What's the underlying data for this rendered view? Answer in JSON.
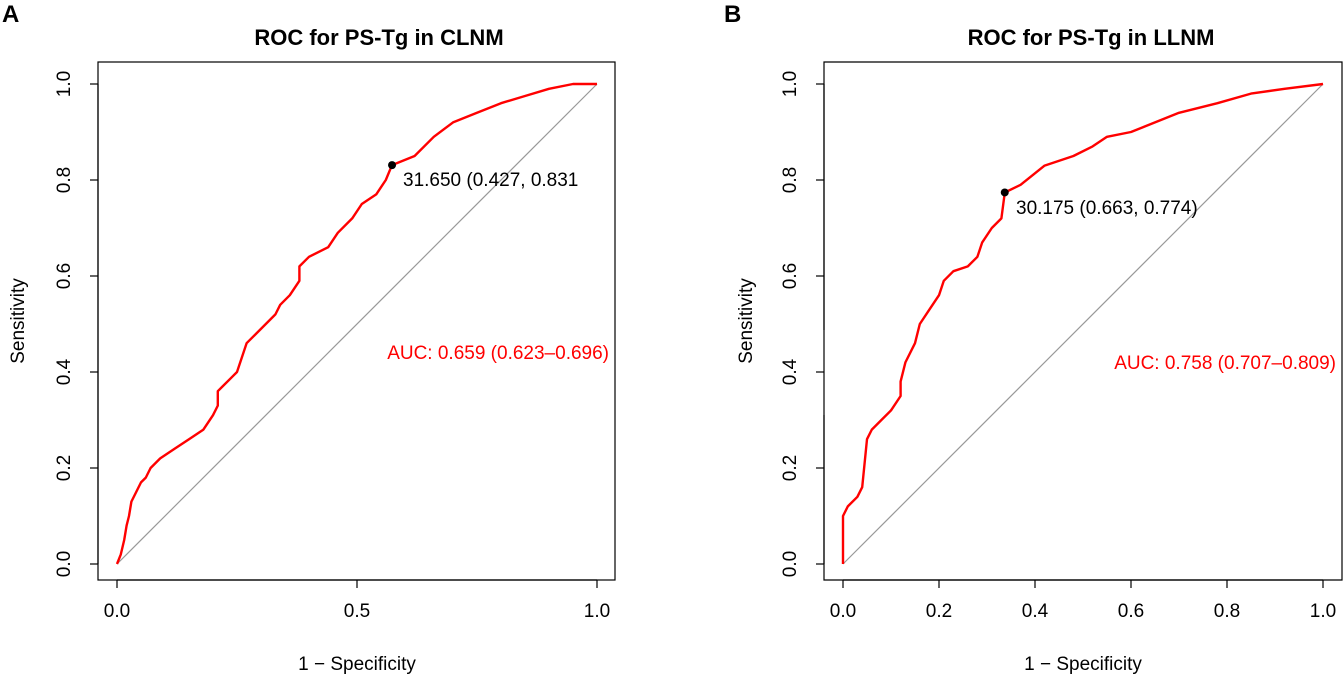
{
  "chart_data": [
    {
      "type": "line",
      "panel": "A",
      "title": "ROC for PS-Tg in CLNM",
      "xlabel": "1 − Specificity",
      "ylabel": "Sensitivity",
      "xlim": [
        0,
        1
      ],
      "ylim": [
        0,
        1
      ],
      "xticks": [
        0.0,
        0.5,
        1.0
      ],
      "xtick_labels": [
        "0.0",
        "0.5",
        "1.0"
      ],
      "yticks": [
        0.0,
        0.2,
        0.4,
        0.6,
        0.8,
        1.0
      ],
      "ytick_labels": [
        "0.0",
        "0.2",
        "0.4",
        "0.6",
        "0.8",
        "1.0"
      ],
      "curve_color": "#ff0000",
      "diagonal_color": "#999999",
      "series": [
        {
          "name": "ROC",
          "points": [
            [
              0.0,
              0.0
            ],
            [
              0.008,
              0.02
            ],
            [
              0.015,
              0.05
            ],
            [
              0.02,
              0.08
            ],
            [
              0.025,
              0.1
            ],
            [
              0.03,
              0.13
            ],
            [
              0.04,
              0.15
            ],
            [
              0.05,
              0.17
            ],
            [
              0.06,
              0.18
            ],
            [
              0.07,
              0.2
            ],
            [
              0.09,
              0.22
            ],
            [
              0.12,
              0.24
            ],
            [
              0.15,
              0.26
            ],
            [
              0.18,
              0.28
            ],
            [
              0.2,
              0.31
            ],
            [
              0.21,
              0.33
            ],
            [
              0.21,
              0.36
            ],
            [
              0.22,
              0.37
            ],
            [
              0.24,
              0.39
            ],
            [
              0.25,
              0.4
            ],
            [
              0.26,
              0.43
            ],
            [
              0.27,
              0.46
            ],
            [
              0.29,
              0.48
            ],
            [
              0.31,
              0.5
            ],
            [
              0.33,
              0.52
            ],
            [
              0.34,
              0.54
            ],
            [
              0.36,
              0.56
            ],
            [
              0.38,
              0.59
            ],
            [
              0.38,
              0.62
            ],
            [
              0.4,
              0.64
            ],
            [
              0.44,
              0.66
            ],
            [
              0.46,
              0.69
            ],
            [
              0.49,
              0.72
            ],
            [
              0.51,
              0.75
            ],
            [
              0.54,
              0.77
            ],
            [
              0.56,
              0.8
            ],
            [
              0.573,
              0.831
            ],
            [
              0.62,
              0.85
            ],
            [
              0.66,
              0.89
            ],
            [
              0.7,
              0.92
            ],
            [
              0.75,
              0.94
            ],
            [
              0.8,
              0.96
            ],
            [
              0.85,
              0.975
            ],
            [
              0.9,
              0.99
            ],
            [
              0.95,
              1.0
            ],
            [
              1.0,
              1.0
            ]
          ]
        }
      ],
      "cutoff_point": {
        "x": 0.573,
        "y": 0.831,
        "label": "31.650 (0.427, 0.831"
      },
      "auc_label": "AUC: 0.659 (0.623–0.696)"
    },
    {
      "type": "line",
      "panel": "B",
      "title": "ROC for PS-Tg in LLNM",
      "xlabel": "1 − Specificity",
      "ylabel": "Sensitivity",
      "xlim": [
        0,
        1
      ],
      "ylim": [
        0,
        1
      ],
      "xticks": [
        0.0,
        0.2,
        0.4,
        0.6,
        0.8,
        1.0
      ],
      "xtick_labels": [
        "0.0",
        "0.2",
        "0.4",
        "0.6",
        "0.8",
        "1.0"
      ],
      "yticks": [
        0.0,
        0.2,
        0.4,
        0.6,
        0.8,
        1.0
      ],
      "ytick_labels": [
        "0.0",
        "0.2",
        "0.4",
        "0.6",
        "0.8",
        "1.0"
      ],
      "curve_color": "#ff0000",
      "diagonal_color": "#999999",
      "series": [
        {
          "name": "ROC",
          "points": [
            [
              0.0,
              0.0
            ],
            [
              0.0,
              0.1
            ],
            [
              0.01,
              0.12
            ],
            [
              0.03,
              0.14
            ],
            [
              0.04,
              0.16
            ],
            [
              0.05,
              0.26
            ],
            [
              0.06,
              0.28
            ],
            [
              0.08,
              0.3
            ],
            [
              0.1,
              0.32
            ],
            [
              0.12,
              0.35
            ],
            [
              0.12,
              0.38
            ],
            [
              0.13,
              0.42
            ],
            [
              0.15,
              0.46
            ],
            [
              0.16,
              0.5
            ],
            [
              0.18,
              0.53
            ],
            [
              0.2,
              0.56
            ],
            [
              0.21,
              0.59
            ],
            [
              0.23,
              0.61
            ],
            [
              0.26,
              0.62
            ],
            [
              0.28,
              0.64
            ],
            [
              0.29,
              0.67
            ],
            [
              0.31,
              0.7
            ],
            [
              0.33,
              0.72
            ],
            [
              0.337,
              0.774
            ],
            [
              0.37,
              0.79
            ],
            [
              0.42,
              0.83
            ],
            [
              0.48,
              0.85
            ],
            [
              0.52,
              0.87
            ],
            [
              0.55,
              0.89
            ],
            [
              0.6,
              0.9
            ],
            [
              0.65,
              0.92
            ],
            [
              0.7,
              0.94
            ],
            [
              0.78,
              0.96
            ],
            [
              0.85,
              0.98
            ],
            [
              0.92,
              0.99
            ],
            [
              1.0,
              1.0
            ]
          ]
        }
      ],
      "cutoff_point": {
        "x": 0.337,
        "y": 0.774,
        "label": "30.175 (0.663, 0.774)"
      },
      "auc_label": "AUC: 0.758 (0.707–0.809)"
    }
  ]
}
